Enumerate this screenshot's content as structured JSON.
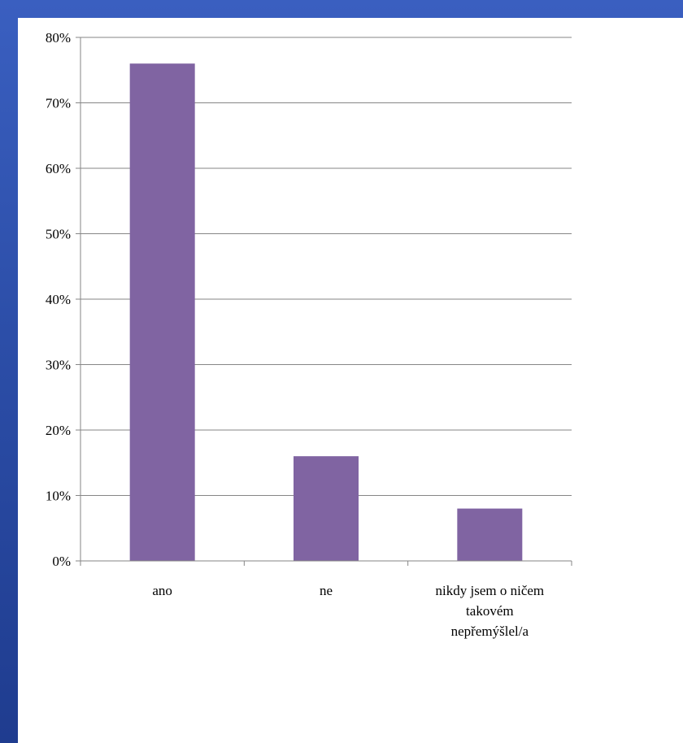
{
  "chart_data": {
    "type": "bar",
    "categories": [
      "ano",
      "ne",
      "nikdy jsem o ničem takovém nepřemýšlel/a"
    ],
    "category_label_lines": [
      [
        "ano"
      ],
      [
        "ne"
      ],
      [
        "nikdy jsem o ničem",
        "takovém",
        "nepřemýšlel/a"
      ]
    ],
    "values": [
      76,
      16,
      8
    ],
    "unit": "%",
    "title": "",
    "xlabel": "",
    "ylabel": "",
    "ylim": [
      0,
      80
    ],
    "y_ticks": [
      0,
      10,
      20,
      30,
      40,
      50,
      60,
      70,
      80
    ],
    "y_tick_labels": [
      "0%",
      "10%",
      "20%",
      "30%",
      "40%",
      "50%",
      "60%",
      "70%",
      "80%"
    ],
    "grid": true,
    "legend": "none",
    "bar_color": "#8064a2",
    "gridline_color": "#868686",
    "axis_color": "#868686"
  }
}
